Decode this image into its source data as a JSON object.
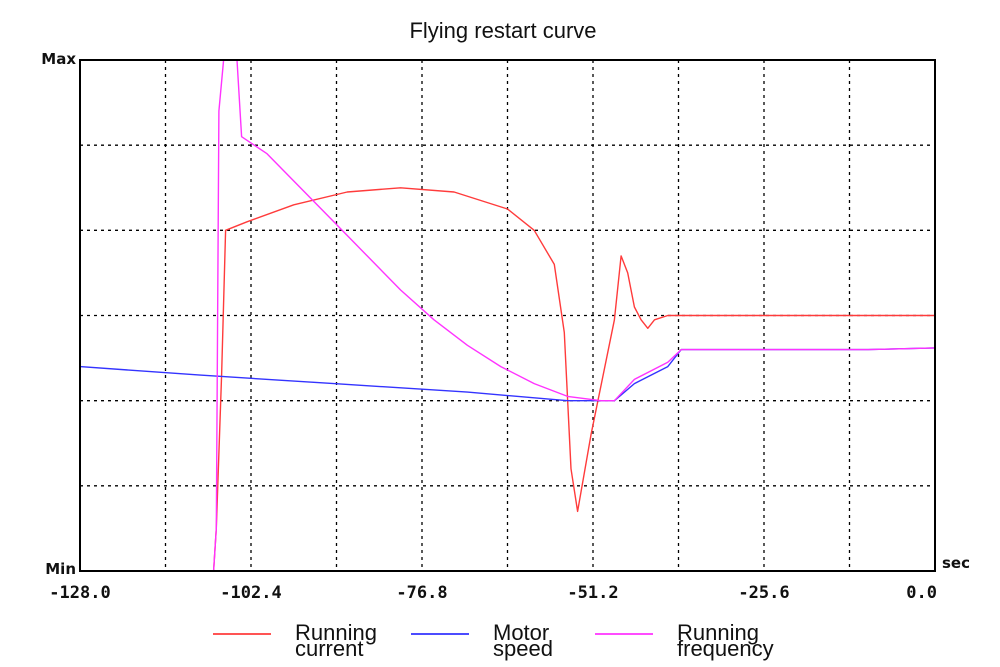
{
  "chart_data": {
    "type": "line",
    "title": "Flying restart curve",
    "xlabel": "",
    "x_unit": "sec",
    "ylabel": "",
    "xlim": [
      -128.0,
      0.0
    ],
    "ylim": [
      0,
      6
    ],
    "x_ticks": [
      -128.0,
      -102.4,
      -76.8,
      -51.2,
      -25.6,
      0.0
    ],
    "x_tick_labels": [
      "-128.0",
      "-102.4",
      "-76.8",
      "-51.2",
      "-25.6",
      "0.0"
    ],
    "y_tick_labels": {
      "max": "Max",
      "min": "Min"
    },
    "grid": true,
    "legend_position": "bottom",
    "series": [
      {
        "name_lines": [
          "Running",
          "current"
        ],
        "color": "#ff3b3b",
        "x": [
          -128.0,
          -108.0,
          -107.6,
          -106.8,
          -106.2,
          -103.0,
          -96.0,
          -88.0,
          -80.0,
          -72.0,
          -64.0,
          -60.0,
          -57.0,
          -55.5,
          -54.5,
          -53.5,
          -51.5,
          -48.0,
          -47.0,
          -46.0,
          -45.0,
          -44.0,
          -43.0,
          -42.0,
          -40.0,
          -30.0,
          -20.0,
          -10.0,
          0.0
        ],
        "y": [
          0.0,
          0.0,
          0.5,
          2.3,
          4.0,
          4.1,
          4.3,
          4.45,
          4.5,
          4.45,
          4.25,
          4.0,
          3.6,
          2.8,
          1.2,
          0.7,
          1.6,
          2.95,
          3.7,
          3.5,
          3.1,
          2.95,
          2.85,
          2.95,
          3.0,
          3.0,
          3.0,
          3.0,
          3.0
        ]
      },
      {
        "name_lines": [
          "Motor",
          "speed"
        ],
        "color": "#3333ff",
        "x": [
          -128.0,
          -110.0,
          -90.0,
          -70.0,
          -55.0,
          -48.0,
          -45.0,
          -40.0,
          -38.0,
          -25.0,
          -10.0,
          0.0
        ],
        "y": [
          2.4,
          2.3,
          2.2,
          2.1,
          2.0,
          2.0,
          2.2,
          2.4,
          2.6,
          2.6,
          2.6,
          2.62
        ]
      },
      {
        "name_lines": [
          "Running",
          "frequency"
        ],
        "color": "#ff33ff",
        "x": [
          -128.0,
          -108.0,
          -107.6,
          -107.2,
          -106.5,
          -104.5,
          -103.8,
          -100.0,
          -95.0,
          -90.0,
          -85.0,
          -80.0,
          -75.0,
          -70.0,
          -65.0,
          -60.0,
          -55.0,
          -50.0,
          -48.0,
          -45.0,
          -40.0,
          -38.0,
          -25.0,
          -10.0,
          0.0
        ],
        "y": [
          0.0,
          0.0,
          0.5,
          5.4,
          6.0,
          6.0,
          5.1,
          4.9,
          4.5,
          4.1,
          3.7,
          3.3,
          2.95,
          2.65,
          2.4,
          2.2,
          2.05,
          2.0,
          2.0,
          2.25,
          2.45,
          2.6,
          2.6,
          2.6,
          2.62
        ]
      }
    ]
  }
}
